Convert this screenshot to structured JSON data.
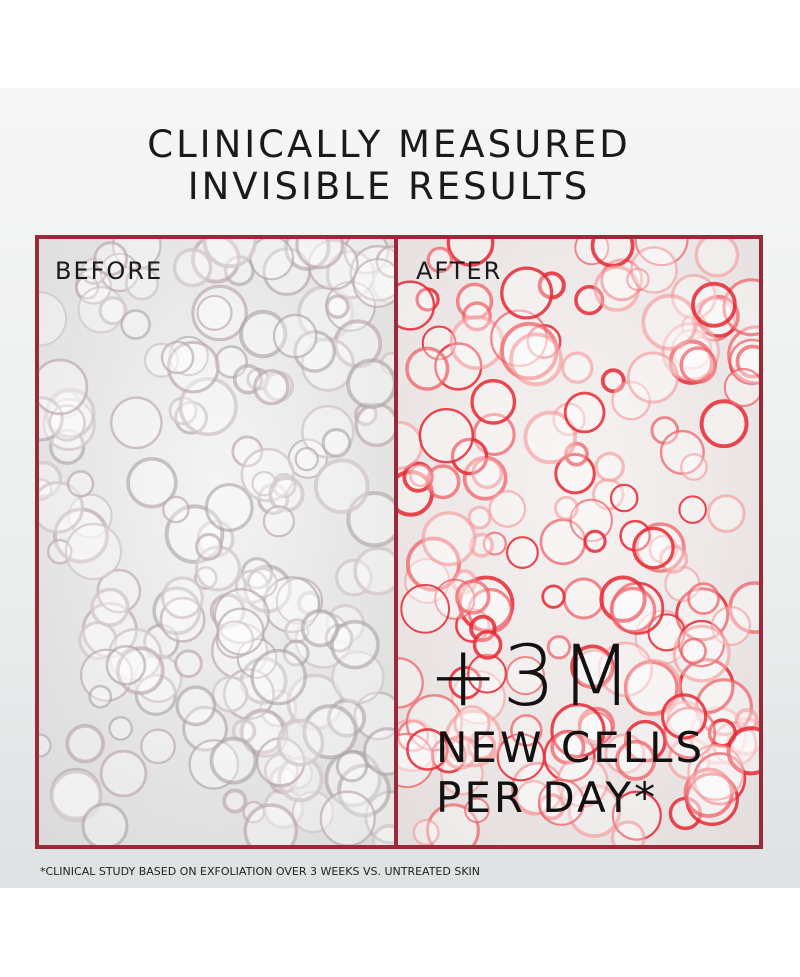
{
  "header": {
    "title_lines": [
      "CLINICALLY MEASURED",
      "INVISIBLE RESULTS"
    ]
  },
  "panels": {
    "before": {
      "label": "BEFORE"
    },
    "after": {
      "label": "AFTER",
      "stat": "+3M",
      "stat_lines": [
        "NEW CELLS",
        "PER DAY*"
      ]
    }
  },
  "footnote": "*CLINICAL STUDY BASED ON EXFOLIATION OVER 3 WEEKS VS. UNTREATED SKIN"
}
